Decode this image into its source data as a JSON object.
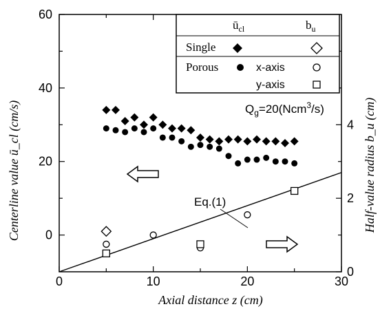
{
  "chart_data": {
    "type": "scatter",
    "x": {
      "label": "Axial distance  z (cm)",
      "lim": [
        0,
        30
      ],
      "ticks": [
        0,
        10,
        20,
        30
      ]
    },
    "y_left": {
      "label": "Centerline value ū_cl (cm/s)",
      "lim": [
        -10,
        60
      ],
      "ticks": [
        0,
        20,
        40,
        60
      ]
    },
    "y_right": {
      "label": "Half-value radius b_u (cm)",
      "lim": [
        0,
        7
      ],
      "ticks": [
        0,
        2,
        4
      ]
    },
    "legend": {
      "header_left": "ū",
      "header_left_sub": "cl",
      "header_right": "b",
      "header_right_sub": "u",
      "row_single": "Single",
      "row_porous": "Porous",
      "row_xaxis": "x-axis",
      "row_yaxis": "y-axis"
    },
    "condition_label": "Q",
    "condition_sub": "g",
    "condition_value": "=20(Ncm",
    "condition_sup": "3",
    "condition_tail": "/s)",
    "equation_label": "Eq.(1)",
    "series": [
      {
        "name": "Single",
        "axis": "left",
        "marker": "filled-diamond",
        "points": [
          [
            5,
            34
          ],
          [
            6,
            34
          ],
          [
            7,
            31
          ],
          [
            8,
            32
          ],
          [
            9,
            30
          ],
          [
            10,
            32
          ],
          [
            11,
            30
          ],
          [
            12,
            29
          ],
          [
            13,
            29
          ],
          [
            14,
            28.5
          ],
          [
            15,
            26.5
          ],
          [
            16,
            26
          ],
          [
            17,
            25.5
          ],
          [
            18,
            26
          ],
          [
            19,
            26
          ],
          [
            20,
            25.5
          ],
          [
            21,
            26
          ],
          [
            22,
            25.5
          ],
          [
            23,
            25.5
          ],
          [
            24,
            25
          ],
          [
            25,
            25.5
          ]
        ]
      },
      {
        "name": "Porous",
        "axis": "left",
        "marker": "filled-circle",
        "points": [
          [
            5,
            29
          ],
          [
            6,
            28.5
          ],
          [
            7,
            28
          ],
          [
            8,
            29
          ],
          [
            9,
            28
          ],
          [
            10,
            29
          ],
          [
            11,
            26.5
          ],
          [
            12,
            26.5
          ],
          [
            13,
            25.5
          ],
          [
            14,
            24
          ],
          [
            15,
            24.5
          ],
          [
            16,
            24
          ],
          [
            17,
            23.5
          ],
          [
            18,
            21.5
          ],
          [
            19,
            19.5
          ],
          [
            20,
            20.5
          ],
          [
            21,
            20.5
          ],
          [
            22,
            21
          ],
          [
            23,
            20
          ],
          [
            24,
            20
          ],
          [
            25,
            19.5
          ]
        ]
      },
      {
        "name": "Single",
        "axis": "right",
        "marker": "open-diamond",
        "points": [
          [
            5,
            1.1
          ]
        ]
      },
      {
        "name": "x-axis",
        "axis": "right",
        "marker": "open-circle",
        "points": [
          [
            5,
            0.75
          ],
          [
            10,
            1.0
          ],
          [
            15,
            0.65
          ],
          [
            20,
            1.55
          ],
          [
            25,
            2.2
          ]
        ]
      },
      {
        "name": "y-axis",
        "axis": "right",
        "marker": "open-square",
        "points": [
          [
            5,
            0.5
          ],
          [
            15,
            0.75
          ],
          [
            25,
            2.2
          ]
        ]
      },
      {
        "name": "Eq.(1)",
        "axis": "right",
        "marker": "line",
        "points": [
          [
            0,
            0
          ],
          [
            30,
            2.7
          ]
        ]
      }
    ]
  }
}
